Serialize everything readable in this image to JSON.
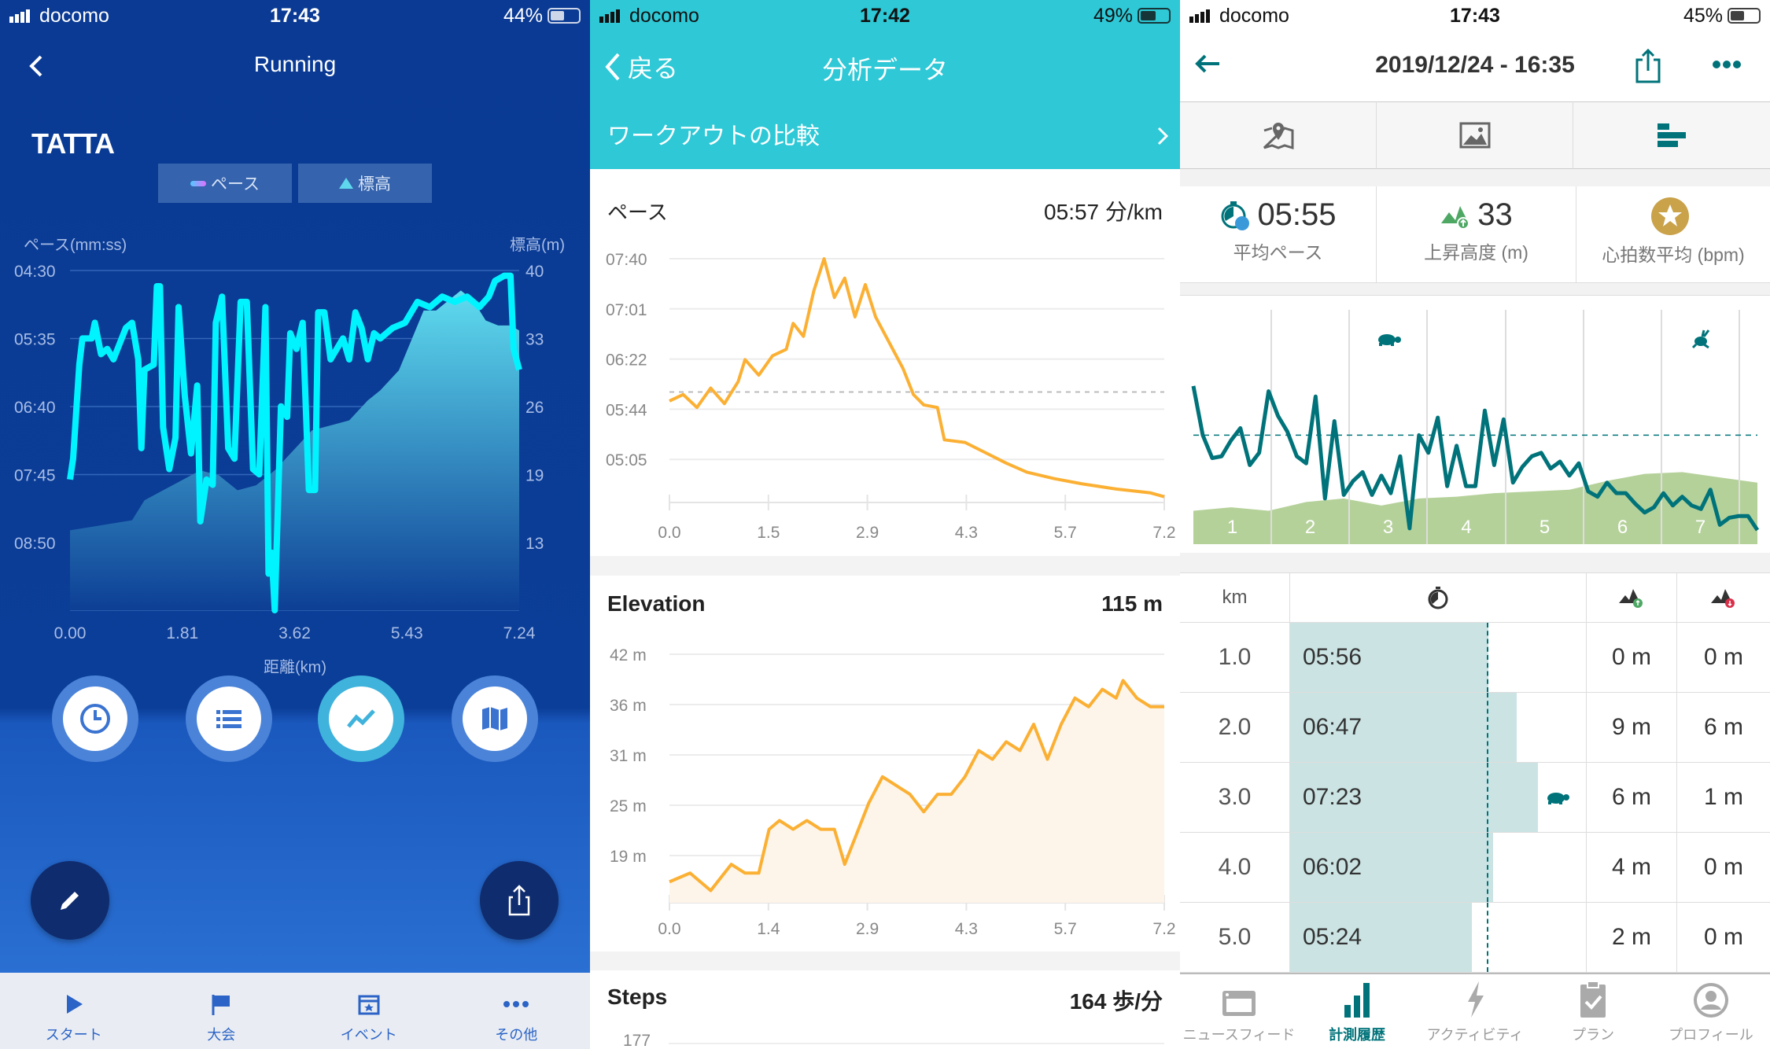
{
  "tatta": {
    "status": {
      "carrier": "docomo",
      "time": "17:43",
      "battery": "44%",
      "battery_level": 0.44
    },
    "title": "Running",
    "logo": "TATTA",
    "legend": {
      "pace": "ペース",
      "elevation": "標高"
    },
    "colors": {
      "pace_fast": "#ff12b4",
      "pace_slow": "#00f0ff",
      "area_top": "#5fd8ee",
      "background": "#0a3a93"
    },
    "chart_data": {
      "type": "line",
      "ylabel_left": "ペース(mm:ss)",
      "ylabel_right": "標高(m)",
      "xlabel": "距離(km)",
      "x_ticks": [
        "0.00",
        "1.81",
        "3.62",
        "5.43",
        "7.24"
      ],
      "y_ticks_left": [
        "04:30",
        "05:35",
        "06:40",
        "07:45",
        "08:50"
      ],
      "y_ticks_right": [
        "40",
        "33",
        "26",
        "19",
        "13"
      ],
      "xlim": [
        0,
        7.24
      ],
      "ylim_left": [
        "04:30",
        "09:55"
      ],
      "ylim_right": [
        6,
        40
      ],
      "grid": true,
      "series": [
        {
          "name": "ペース",
          "type": "line",
          "x": [
            0,
            0.05,
            0.15,
            0.2,
            0.35,
            0.4,
            0.5,
            0.6,
            0.7,
            0.8,
            0.9,
            1.0,
            1.1,
            1.15,
            1.2,
            1.35,
            1.4,
            1.45,
            1.5,
            1.6,
            1.7,
            1.75,
            1.85,
            1.95,
            2.05,
            2.1,
            2.2,
            2.3,
            2.35,
            2.45,
            2.55,
            2.65,
            2.75,
            2.85,
            2.95,
            3.05,
            3.15,
            3.2,
            3.25,
            3.3,
            3.4,
            3.5,
            3.55,
            3.65,
            3.75,
            3.85,
            3.95,
            4.0,
            4.1,
            4.2,
            4.3,
            4.4,
            4.5,
            4.6,
            4.7,
            4.8,
            4.9,
            5.0,
            5.2,
            5.4,
            5.6,
            5.8,
            6.0,
            6.2,
            6.4,
            6.6,
            6.75,
            6.85,
            7.0,
            7.1,
            7.15,
            7.24
          ],
          "y": [
            "07:50",
            "07:30",
            "06:00",
            "05:35",
            "05:35",
            "05:20",
            "05:50",
            "05:45",
            "05:55",
            "05:40",
            "05:25",
            "05:20",
            "05:55",
            "07:20",
            "06:05",
            "06:00",
            "04:45",
            "04:45",
            "07:00",
            "07:40",
            "07:10",
            "05:05",
            "06:30",
            "07:25",
            "06:20",
            "08:30",
            "07:50",
            "07:55",
            "05:20",
            "04:55",
            "07:20",
            "07:30",
            "05:00",
            "05:00",
            "07:40",
            "07:45",
            "05:05",
            "09:20",
            "09:00",
            "09:55",
            "06:40",
            "06:50",
            "05:30",
            "05:45",
            "05:20",
            "08:00",
            "08:00",
            "05:10",
            "05:10",
            "05:55",
            "05:45",
            "05:35",
            "05:55",
            "05:10",
            "05:25",
            "05:55",
            "05:30",
            "05:35",
            "05:25",
            "05:20",
            "05:00",
            "05:05",
            "04:55",
            "05:00",
            "04:55",
            "05:05",
            "04:55",
            "04:40",
            "04:35",
            "04:35",
            "05:45",
            "06:05"
          ]
        },
        {
          "name": "標高",
          "type": "area",
          "x": [
            0,
            0.5,
            1.0,
            1.2,
            1.5,
            1.8,
            2.1,
            2.4,
            2.7,
            3.0,
            3.3,
            3.6,
            3.9,
            4.2,
            4.5,
            4.8,
            5.0,
            5.3,
            5.5,
            5.7,
            5.9,
            6.1,
            6.3,
            6.5,
            6.7,
            6.9,
            7.1,
            7.24
          ],
          "y": [
            14,
            14.5,
            15,
            17,
            18,
            19,
            20,
            19.5,
            18,
            18.5,
            20,
            22,
            24,
            24.5,
            25,
            27,
            28,
            30,
            33,
            36,
            36,
            37,
            38,
            37,
            35,
            34.5,
            34.5,
            34
          ]
        }
      ]
    },
    "tabs": [
      "スタート",
      "大会",
      "イベント",
      "その他"
    ]
  },
  "analysis": {
    "status": {
      "carrier": "docomo",
      "time": "17:42",
      "battery": "49%",
      "battery_level": 0.49
    },
    "back": "戻る",
    "title": "分析データ",
    "compare": "ワークアウトの比較",
    "colors": {
      "header": "#2ec8d6",
      "line": "#fbb034",
      "fill": "#fdf5ea"
    },
    "pace": {
      "label": "ペース",
      "value": "05:57 分/km"
    },
    "elevation": {
      "label": "Elevation",
      "value": "115 m"
    },
    "steps": {
      "label": "Steps",
      "value": "164 歩/分",
      "first_tick": "177"
    },
    "chart_data": [
      {
        "type": "line",
        "title": "ペース",
        "y_ticks": [
          "07:40",
          "07:01",
          "06:22",
          "05:44",
          "05:05"
        ],
        "x_ticks": [
          "0.0",
          "1.5",
          "2.9",
          "4.3",
          "5.7",
          "7.2"
        ],
        "xlim": [
          0,
          7.2
        ],
        "ylim": [
          "04:17",
          "07:40"
        ],
        "average": "05:57",
        "x": [
          0,
          0.2,
          0.4,
          0.6,
          0.8,
          1.0,
          1.1,
          1.3,
          1.5,
          1.7,
          1.8,
          1.95,
          2.1,
          2.25,
          2.4,
          2.55,
          2.7,
          2.85,
          3.0,
          3.2,
          3.4,
          3.55,
          3.7,
          3.9,
          4.0,
          4.3,
          4.6,
          4.9,
          5.2,
          5.6,
          6.0,
          6.5,
          7.0,
          7.2
        ],
        "y": [
          "05:50",
          "05:55",
          "05:45",
          "06:00",
          "05:48",
          "06:05",
          "06:22",
          "06:10",
          "06:25",
          "06:30",
          "06:50",
          "06:40",
          "07:15",
          "07:40",
          "07:10",
          "07:25",
          "06:55",
          "07:20",
          "06:55",
          "06:35",
          "06:15",
          "05:55",
          "05:47",
          "05:45",
          "05:20",
          "05:18",
          "05:10",
          "05:02",
          "04:55",
          "04:50",
          "04:46",
          "04:42",
          "04:39",
          "04:36"
        ]
      },
      {
        "type": "area",
        "title": "Elevation",
        "y_ticks": [
          "42 m",
          "36 m",
          "31 m",
          "25 m",
          "19 m"
        ],
        "x_ticks": [
          "0.0",
          "1.4",
          "2.9",
          "4.3",
          "5.7",
          "7.2"
        ],
        "xlim": [
          0,
          7.2
        ],
        "ylim": [
          13.6,
          42
        ],
        "x": [
          0,
          0.3,
          0.6,
          0.9,
          1.1,
          1.3,
          1.45,
          1.6,
          1.8,
          2.0,
          2.2,
          2.4,
          2.55,
          2.7,
          2.9,
          3.1,
          3.3,
          3.5,
          3.7,
          3.9,
          4.1,
          4.3,
          4.5,
          4.7,
          4.9,
          5.1,
          5.3,
          5.5,
          5.7,
          5.9,
          6.1,
          6.3,
          6.5,
          6.6,
          6.8,
          7.0,
          7.2
        ],
        "y": [
          16,
          17,
          15,
          18,
          17,
          17,
          22,
          23,
          22,
          23,
          22,
          22,
          18,
          21,
          25,
          28,
          27,
          26,
          24,
          26,
          26,
          28,
          31,
          30,
          32,
          31,
          34,
          30,
          34,
          37,
          36,
          38,
          37,
          39,
          37,
          36,
          36
        ]
      }
    ]
  },
  "history": {
    "status": {
      "carrier": "docomo",
      "time": "17:43",
      "battery": "45%",
      "battery_level": 0.45
    },
    "title": "2019/12/24 - 16:35",
    "colors": {
      "accent": "#00737a",
      "elevation": "#b5d19a",
      "bar": "#cbe3e3",
      "star": "#c9a24a"
    },
    "stats": [
      {
        "value": "05:55",
        "label": "平均ペース",
        "icon": "stopwatch-icon"
      },
      {
        "value": "33",
        "label": "上昇高度 (m)",
        "icon": "elevation-up-icon"
      },
      {
        "value": "",
        "label": "心拍数平均 (bpm)",
        "icon": "star-badge-icon"
      }
    ],
    "chart_data": {
      "type": "line",
      "km_labels": [
        "1",
        "2",
        "3",
        "4",
        "5",
        "6",
        "7"
      ],
      "pace_line": [
        45,
        31,
        24.5,
        25,
        29.5,
        33,
        22.5,
        26,
        43.5,
        36.5,
        32,
        25,
        23,
        42,
        13,
        35,
        14,
        18,
        20.5,
        14,
        19.5,
        14.5,
        25,
        4.5,
        31,
        26,
        36,
        16.5,
        28,
        16.5,
        16.5,
        38,
        22.5,
        35.5,
        17.5,
        22,
        25,
        26,
        21.5,
        23.5,
        19.5,
        23,
        15,
        13.5,
        17.5,
        14.5,
        14.5,
        11.5,
        9,
        10.5,
        14.5,
        11,
        13.5,
        11,
        10,
        15.5,
        5.5,
        7.5,
        8,
        8,
        4
      ],
      "average": 31,
      "elevation_area": [
        9.5,
        10.5,
        9.5,
        12,
        13,
        11,
        13,
        13.5,
        14.5,
        15,
        15.5,
        18,
        20,
        20.5,
        19,
        17.5
      ],
      "slowest_marker_km": 3,
      "fastest_marker_km": 7
    },
    "table": {
      "headers": {
        "km": "km"
      },
      "average_pace": "05:55",
      "rows": [
        {
          "km": "1.0",
          "pace": "05:56",
          "up": "0 m",
          "down": "0 m",
          "slow": false
        },
        {
          "km": "2.0",
          "pace": "06:47",
          "up": "9 m",
          "down": "6 m",
          "slow": false
        },
        {
          "km": "3.0",
          "pace": "07:23",
          "up": "6 m",
          "down": "1 m",
          "slow": true
        },
        {
          "km": "4.0",
          "pace": "06:02",
          "up": "4 m",
          "down": "0 m",
          "slow": false
        },
        {
          "km": "5.0",
          "pace": "05:24",
          "up": "2 m",
          "down": "0 m",
          "slow": false
        }
      ]
    },
    "tabs": [
      "ニュースフィード",
      "計測履歴",
      "アクティビティ",
      "プラン",
      "プロフィール"
    ],
    "active_tab": 1
  }
}
